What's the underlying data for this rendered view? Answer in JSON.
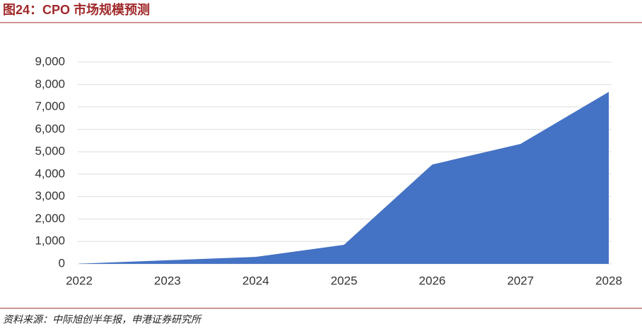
{
  "title": "图24：CPO 市场规模预测",
  "source": "资料来源：中际旭创半年报，申港证券研究所",
  "chart_data": {
    "type": "area",
    "categories": [
      "2022",
      "2023",
      "2024",
      "2025",
      "2026",
      "2027",
      "2028"
    ],
    "values": [
      10,
      160,
      310,
      850,
      4430,
      5350,
      7670
    ],
    "color": "#4472c4",
    "ylim": [
      0,
      9000
    ],
    "yticks": [
      0,
      {
        "value": 1000,
        "label": "1,000"
      },
      {
        "value": 2000,
        "label": "2,000"
      },
      {
        "value": 3000,
        "label": "3,000"
      },
      {
        "value": 4000,
        "label": "4,000"
      },
      {
        "value": 5000,
        "label": "5,000"
      },
      {
        "value": 6000,
        "label": "6,000"
      },
      {
        "value": 7000,
        "label": "7,000"
      },
      {
        "value": 8000,
        "label": "8,000"
      },
      {
        "value": 9000,
        "label": "9,000"
      }
    ],
    "grid": true
  }
}
